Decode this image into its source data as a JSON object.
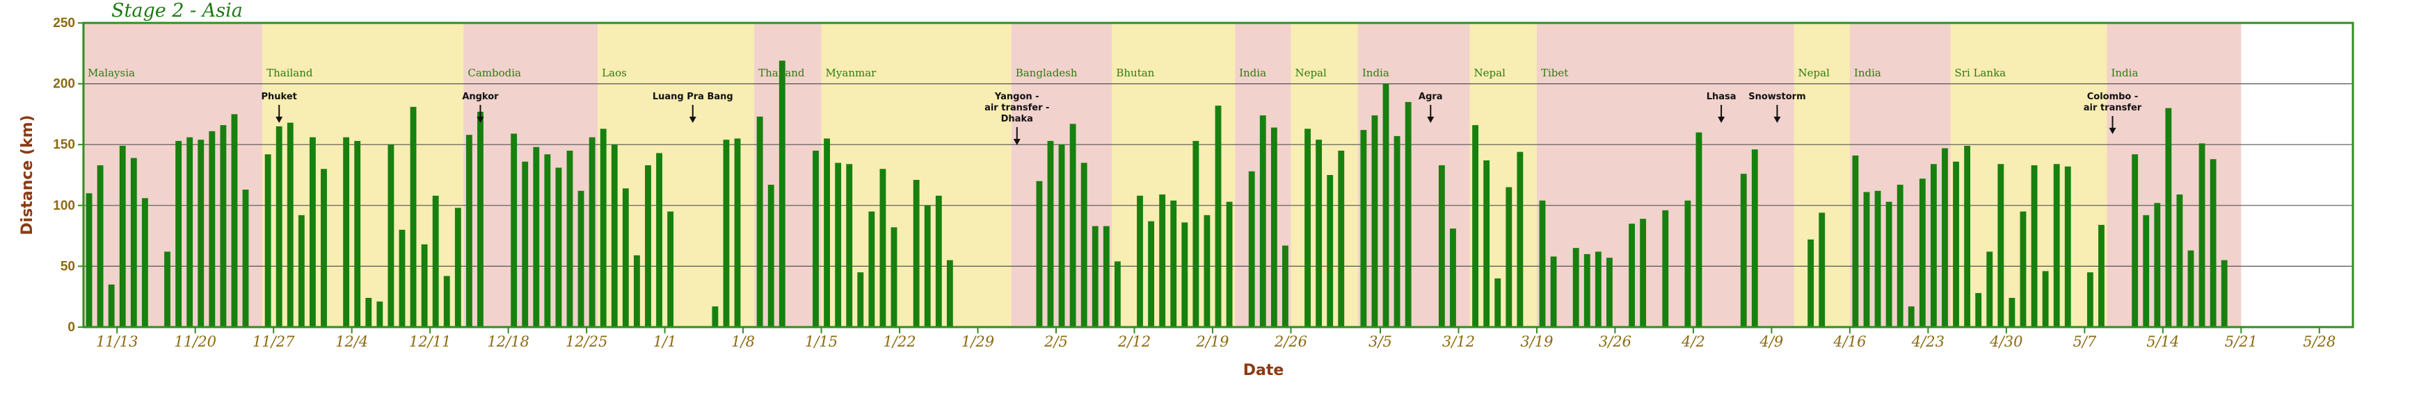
{
  "chart_data": {
    "type": "bar",
    "title": "Stage 2 - Asia",
    "xlabel": "Date",
    "ylabel": "Distance (km)",
    "ylim": [
      0,
      250
    ],
    "yticks": [
      0,
      50,
      100,
      150,
      200,
      250
    ],
    "grid": "horizontal",
    "x_start": "2015-11-10",
    "x_end": "2016-05-31",
    "x_tick_labels": [
      "11/13",
      "11/20",
      "11/27",
      "12/4",
      "12/11",
      "12/18",
      "12/25",
      "1/1",
      "1/8",
      "1/15",
      "1/22",
      "1/29",
      "2/5",
      "2/12",
      "2/19",
      "2/26",
      "3/5",
      "3/12",
      "3/19",
      "3/26",
      "4/2",
      "4/9",
      "4/16",
      "4/23",
      "4/30",
      "5/7",
      "5/14",
      "5/21",
      "5/28"
    ],
    "x_tick_dates": [
      "2015-11-13",
      "2015-11-20",
      "2015-11-27",
      "2015-12-04",
      "2015-12-11",
      "2015-12-18",
      "2015-12-25",
      "2016-01-01",
      "2016-01-08",
      "2016-01-15",
      "2016-01-22",
      "2016-01-29",
      "2016-02-05",
      "2016-02-12",
      "2016-02-19",
      "2016-02-26",
      "2016-03-05",
      "2016-03-12",
      "2016-03-19",
      "2016-03-26",
      "2016-04-02",
      "2016-04-09",
      "2016-04-16",
      "2016-04-23",
      "2016-04-30",
      "2016-05-07",
      "2016-05-14",
      "2016-05-21",
      "2016-05-28"
    ],
    "bars": [
      {
        "date": "2015-11-10",
        "value": 110
      },
      {
        "date": "2015-11-11",
        "value": 133
      },
      {
        "date": "2015-11-12",
        "value": 35
      },
      {
        "date": "2015-11-13",
        "value": 149
      },
      {
        "date": "2015-11-14",
        "value": 139
      },
      {
        "date": "2015-11-15",
        "value": 106
      },
      {
        "date": "2015-11-17",
        "value": 62
      },
      {
        "date": "2015-11-18",
        "value": 153
      },
      {
        "date": "2015-11-19",
        "value": 156
      },
      {
        "date": "2015-11-20",
        "value": 154
      },
      {
        "date": "2015-11-21",
        "value": 161
      },
      {
        "date": "2015-11-22",
        "value": 166
      },
      {
        "date": "2015-11-23",
        "value": 175
      },
      {
        "date": "2015-11-24",
        "value": 113
      },
      {
        "date": "2015-11-26",
        "value": 142
      },
      {
        "date": "2015-11-27",
        "value": 165
      },
      {
        "date": "2015-11-28",
        "value": 168
      },
      {
        "date": "2015-11-29",
        "value": 92
      },
      {
        "date": "2015-11-30",
        "value": 156
      },
      {
        "date": "2015-12-01",
        "value": 130
      },
      {
        "date": "2015-12-03",
        "value": 156
      },
      {
        "date": "2015-12-04",
        "value": 153
      },
      {
        "date": "2015-12-05",
        "value": 24
      },
      {
        "date": "2015-12-06",
        "value": 21
      },
      {
        "date": "2015-12-07",
        "value": 150
      },
      {
        "date": "2015-12-08",
        "value": 80
      },
      {
        "date": "2015-12-09",
        "value": 181
      },
      {
        "date": "2015-12-10",
        "value": 68
      },
      {
        "date": "2015-12-11",
        "value": 108
      },
      {
        "date": "2015-12-12",
        "value": 42
      },
      {
        "date": "2015-12-13",
        "value": 98
      },
      {
        "date": "2015-12-14",
        "value": 158
      },
      {
        "date": "2015-12-15",
        "value": 177
      },
      {
        "date": "2015-12-18",
        "value": 159
      },
      {
        "date": "2015-12-19",
        "value": 136
      },
      {
        "date": "2015-12-20",
        "value": 148
      },
      {
        "date": "2015-12-21",
        "value": 142
      },
      {
        "date": "2015-12-22",
        "value": 131
      },
      {
        "date": "2015-12-23",
        "value": 145
      },
      {
        "date": "2015-12-24",
        "value": 112
      },
      {
        "date": "2015-12-25",
        "value": 156
      },
      {
        "date": "2015-12-26",
        "value": 163
      },
      {
        "date": "2015-12-27",
        "value": 150
      },
      {
        "date": "2015-12-28",
        "value": 114
      },
      {
        "date": "2015-12-29",
        "value": 59
      },
      {
        "date": "2015-12-30",
        "value": 133
      },
      {
        "date": "2015-12-31",
        "value": 143
      },
      {
        "date": "2016-01-01",
        "value": 95
      },
      {
        "date": "2016-01-05",
        "value": 17
      },
      {
        "date": "2016-01-06",
        "value": 154
      },
      {
        "date": "2016-01-07",
        "value": 155
      },
      {
        "date": "2016-01-09",
        "value": 173
      },
      {
        "date": "2016-01-10",
        "value": 117
      },
      {
        "date": "2016-01-11",
        "value": 219
      },
      {
        "date": "2016-01-14",
        "value": 145
      },
      {
        "date": "2016-01-15",
        "value": 155
      },
      {
        "date": "2016-01-16",
        "value": 135
      },
      {
        "date": "2016-01-17",
        "value": 134
      },
      {
        "date": "2016-01-18",
        "value": 45
      },
      {
        "date": "2016-01-19",
        "value": 95
      },
      {
        "date": "2016-01-20",
        "value": 130
      },
      {
        "date": "2016-01-21",
        "value": 82
      },
      {
        "date": "2016-01-23",
        "value": 121
      },
      {
        "date": "2016-01-24",
        "value": 100
      },
      {
        "date": "2016-01-25",
        "value": 108
      },
      {
        "date": "2016-01-26",
        "value": 55
      },
      {
        "date": "2016-02-03",
        "value": 120
      },
      {
        "date": "2016-02-04",
        "value": 153
      },
      {
        "date": "2016-02-05",
        "value": 150
      },
      {
        "date": "2016-02-06",
        "value": 167
      },
      {
        "date": "2016-02-07",
        "value": 135
      },
      {
        "date": "2016-02-08",
        "value": 83
      },
      {
        "date": "2016-02-09",
        "value": 83
      },
      {
        "date": "2016-02-10",
        "value": 54
      },
      {
        "date": "2016-02-12",
        "value": 108
      },
      {
        "date": "2016-02-13",
        "value": 87
      },
      {
        "date": "2016-02-14",
        "value": 109
      },
      {
        "date": "2016-02-15",
        "value": 104
      },
      {
        "date": "2016-02-16",
        "value": 86
      },
      {
        "date": "2016-02-17",
        "value": 153
      },
      {
        "date": "2016-02-18",
        "value": 92
      },
      {
        "date": "2016-02-19",
        "value": 182
      },
      {
        "date": "2016-02-20",
        "value": 103
      },
      {
        "date": "2016-02-22",
        "value": 128
      },
      {
        "date": "2016-02-23",
        "value": 174
      },
      {
        "date": "2016-02-24",
        "value": 164
      },
      {
        "date": "2016-02-25",
        "value": 67
      },
      {
        "date": "2016-02-27",
        "value": 163
      },
      {
        "date": "2016-02-28",
        "value": 154
      },
      {
        "date": "2016-02-29",
        "value": 125
      },
      {
        "date": "2016-03-01",
        "value": 145
      },
      {
        "date": "2016-03-03",
        "value": 162
      },
      {
        "date": "2016-03-04",
        "value": 174
      },
      {
        "date": "2016-03-05",
        "value": 200
      },
      {
        "date": "2016-03-06",
        "value": 157
      },
      {
        "date": "2016-03-07",
        "value": 185
      },
      {
        "date": "2016-03-10",
        "value": 133
      },
      {
        "date": "2016-03-11",
        "value": 81
      },
      {
        "date": "2016-03-13",
        "value": 166
      },
      {
        "date": "2016-03-14",
        "value": 137
      },
      {
        "date": "2016-03-15",
        "value": 40
      },
      {
        "date": "2016-03-16",
        "value": 115
      },
      {
        "date": "2016-03-17",
        "value": 144
      },
      {
        "date": "2016-03-19",
        "value": 104
      },
      {
        "date": "2016-03-20",
        "value": 58
      },
      {
        "date": "2016-03-22",
        "value": 65
      },
      {
        "date": "2016-03-23",
        "value": 60
      },
      {
        "date": "2016-03-24",
        "value": 62
      },
      {
        "date": "2016-03-25",
        "value": 57
      },
      {
        "date": "2016-03-27",
        "value": 85
      },
      {
        "date": "2016-03-28",
        "value": 89
      },
      {
        "date": "2016-03-30",
        "value": 96
      },
      {
        "date": "2016-04-01",
        "value": 104
      },
      {
        "date": "2016-04-02",
        "value": 160
      },
      {
        "date": "2016-04-06",
        "value": 126
      },
      {
        "date": "2016-04-07",
        "value": 146
      },
      {
        "date": "2016-04-12",
        "value": 72
      },
      {
        "date": "2016-04-13",
        "value": 94
      },
      {
        "date": "2016-04-16",
        "value": 141
      },
      {
        "date": "2016-04-17",
        "value": 111
      },
      {
        "date": "2016-04-18",
        "value": 112
      },
      {
        "date": "2016-04-19",
        "value": 103
      },
      {
        "date": "2016-04-20",
        "value": 117
      },
      {
        "date": "2016-04-21",
        "value": 17
      },
      {
        "date": "2016-04-22",
        "value": 122
      },
      {
        "date": "2016-04-23",
        "value": 134
      },
      {
        "date": "2016-04-24",
        "value": 147
      },
      {
        "date": "2016-04-25",
        "value": 136
      },
      {
        "date": "2016-04-26",
        "value": 149
      },
      {
        "date": "2016-04-27",
        "value": 28
      },
      {
        "date": "2016-04-28",
        "value": 62
      },
      {
        "date": "2016-04-29",
        "value": 134
      },
      {
        "date": "2016-04-30",
        "value": 24
      },
      {
        "date": "2016-05-01",
        "value": 95
      },
      {
        "date": "2016-05-02",
        "value": 133
      },
      {
        "date": "2016-05-03",
        "value": 46
      },
      {
        "date": "2016-05-04",
        "value": 134
      },
      {
        "date": "2016-05-05",
        "value": 132
      },
      {
        "date": "2016-05-07",
        "value": 45
      },
      {
        "date": "2016-05-08",
        "value": 84
      },
      {
        "date": "2016-05-11",
        "value": 142
      },
      {
        "date": "2016-05-12",
        "value": 92
      },
      {
        "date": "2016-05-13",
        "value": 102
      },
      {
        "date": "2016-05-14",
        "value": 180
      },
      {
        "date": "2016-05-15",
        "value": 109
      },
      {
        "date": "2016-05-16",
        "value": 63
      },
      {
        "date": "2016-05-17",
        "value": 151
      },
      {
        "date": "2016-05-18",
        "value": 138
      },
      {
        "date": "2016-05-19",
        "value": 55
      }
    ],
    "regions": [
      {
        "name": "Malaysia",
        "start": "2015-11-10",
        "end": "2015-11-26",
        "color": "#f2d2cc"
      },
      {
        "name": "Thailand",
        "start": "2015-11-26",
        "end": "2015-12-14",
        "color": "#f8edb2"
      },
      {
        "name": "Cambodia",
        "start": "2015-12-14",
        "end": "2015-12-26",
        "color": "#f2d2cc"
      },
      {
        "name": "Laos",
        "start": "2015-12-26",
        "end": "2016-01-09",
        "color": "#f8edb2"
      },
      {
        "name": "Thailand",
        "start": "2016-01-09",
        "end": "2016-01-15",
        "color": "#f2d2cc"
      },
      {
        "name": "Myanmar",
        "start": "2016-01-15",
        "end": "2016-02-01",
        "color": "#f8edb2"
      },
      {
        "name": "Bangladesh",
        "start": "2016-02-01",
        "end": "2016-02-10",
        "color": "#f2d2cc"
      },
      {
        "name": "Bhutan",
        "start": "2016-02-10",
        "end": "2016-02-21",
        "color": "#f8edb2"
      },
      {
        "name": "India",
        "start": "2016-02-21",
        "end": "2016-02-26",
        "color": "#f2d2cc"
      },
      {
        "name": "Nepal",
        "start": "2016-02-26",
        "end": "2016-03-03",
        "color": "#f8edb2"
      },
      {
        "name": "India",
        "start": "2016-03-03",
        "end": "2016-03-13",
        "color": "#f2d2cc"
      },
      {
        "name": "Nepal",
        "start": "2016-03-13",
        "end": "2016-03-19",
        "color": "#f8edb2"
      },
      {
        "name": "Tibet",
        "start": "2016-03-19",
        "end": "2016-04-11",
        "color": "#f2d2cc"
      },
      {
        "name": "Nepal",
        "start": "2016-04-11",
        "end": "2016-04-16",
        "color": "#f8edb2"
      },
      {
        "name": "India",
        "start": "2016-04-16",
        "end": "2016-04-25",
        "color": "#f2d2cc"
      },
      {
        "name": "Sri Lanka",
        "start": "2016-04-25",
        "end": "2016-05-09",
        "color": "#f8edb2"
      },
      {
        "name": "India",
        "start": "2016-05-09",
        "end": "2016-05-21",
        "color": "#f2d2cc"
      }
    ],
    "annotations": [
      {
        "lines": [
          "Phuket"
        ],
        "date": "2015-11-27"
      },
      {
        "lines": [
          "Angkor"
        ],
        "date": "2015-12-15"
      },
      {
        "lines": [
          "Luang Pra Bang"
        ],
        "date": "2016-01-03"
      },
      {
        "lines": [
          "Yangon -",
          "air transfer -",
          "Dhaka"
        ],
        "date": "2016-02-01"
      },
      {
        "lines": [
          "Agra"
        ],
        "date": "2016-03-09"
      },
      {
        "lines": [
          "Lhasa"
        ],
        "date": "2016-04-04"
      },
      {
        "lines": [
          "Snowstorm"
        ],
        "date": "2016-04-09"
      },
      {
        "lines": [
          "Colombo -",
          "air transfer"
        ],
        "date": "2016-05-09"
      }
    ],
    "colors": {
      "bar": "#17800f",
      "band_pink": "#f2d2cc",
      "band_yellow": "#f8edb2",
      "axis": "#2f8f1f",
      "title": "#1e7a12",
      "axis_title": "#8b3a12",
      "tick_label": "#8b6a10",
      "region_label": "#2e7a10"
    }
  }
}
